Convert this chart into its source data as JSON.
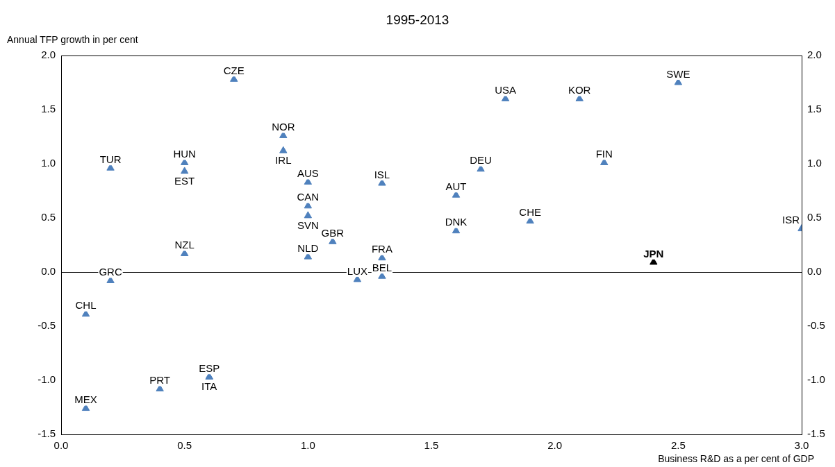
{
  "chart_data": {
    "type": "scatter",
    "title": "1995-2013",
    "ylabel": "Annual TFP growth in per cent",
    "xlabel": "Business R&D as a per cent of GDP",
    "xlim": [
      0,
      3
    ],
    "xticks": [
      {
        "value": 0,
        "label": "0.0"
      },
      {
        "value": 0.5,
        "label": "0.5"
      },
      {
        "value": 1,
        "label": "1.0"
      },
      {
        "value": 1.5,
        "label": "1.5"
      },
      {
        "value": 2,
        "label": "2.0"
      },
      {
        "value": 2.5,
        "label": "2.5"
      },
      {
        "value": 3,
        "label": "3.0"
      }
    ],
    "ylim": [
      -1.5,
      2
    ],
    "yticks": [
      {
        "value": -1.5,
        "label": "-1.5"
      },
      {
        "value": -1,
        "label": "-1.0"
      },
      {
        "value": -0.5,
        "label": "-0.5"
      },
      {
        "value": 0,
        "label": "0.0"
      },
      {
        "value": 0.5,
        "label": "0.5"
      },
      {
        "value": 1,
        "label": "1.0"
      },
      {
        "value": 1.5,
        "label": "1.5"
      },
      {
        "value": 2,
        "label": "2.0"
      }
    ],
    "y2lim": [
      -1.5,
      2
    ],
    "y2ticks": [
      {
        "value": -1.5,
        "label": "-1.5"
      },
      {
        "value": -1,
        "label": "-1.0"
      },
      {
        "value": -0.5,
        "label": "-0.5"
      },
      {
        "value": 0,
        "label": "0.0"
      },
      {
        "value": 0.5,
        "label": "0.5"
      },
      {
        "value": 1,
        "label": "1.0"
      },
      {
        "value": 1.5,
        "label": "1.5"
      },
      {
        "value": 2,
        "label": "2.0"
      }
    ],
    "marker": "triangle",
    "grid": false,
    "legend": false,
    "ref_lines": [
      {
        "axis": "y",
        "value": 0,
        "color": "#000000"
      }
    ],
    "series": [
      {
        "color": "#4f81bd",
        "x": [
          0.2,
          0.5,
          0.5,
          0.7,
          0.9,
          0.9,
          1.0,
          1.0,
          1.0,
          1.0,
          1.1,
          0.5,
          0.2,
          0.1,
          0.1,
          0.4,
          0.6,
          0.6,
          1.2,
          1.3,
          1.3,
          1.3,
          1.6,
          1.6,
          1.7,
          1.8,
          2.1,
          2.5,
          2.2,
          1.9,
          3.0
        ],
        "values": [
          0.96,
          1.01,
          0.93,
          1.78,
          1.26,
          1.12,
          0.83,
          0.61,
          0.52,
          0.14,
          0.28,
          0.17,
          -0.08,
          -0.39,
          -1.26,
          -1.08,
          -0.97,
          -0.97,
          -0.07,
          -0.04,
          0.13,
          0.82,
          0.71,
          0.38,
          0.95,
          1.6,
          1.6,
          1.75,
          1.01,
          0.47,
          0.4
        ]
      },
      {
        "color": "#000000",
        "x": [
          2.4
        ],
        "values": [
          0.09
        ]
      }
    ],
    "annotations": [
      {
        "text": "TUR",
        "x": 0.2,
        "y": 0.96
      },
      {
        "text": "HUN",
        "x": 0.5,
        "y": 1.01
      },
      {
        "text": "EST",
        "x": 0.5,
        "y": 0.93
      },
      {
        "text": "CZE",
        "x": 0.7,
        "y": 1.78
      },
      {
        "text": "NOR",
        "x": 0.9,
        "y": 1.26
      },
      {
        "text": "IRL",
        "x": 0.9,
        "y": 1.12
      },
      {
        "text": "AUS",
        "x": 1.0,
        "y": 0.83
      },
      {
        "text": "CAN",
        "x": 1.0,
        "y": 0.61
      },
      {
        "text": "SVN",
        "x": 1.0,
        "y": 0.52
      },
      {
        "text": "NLD",
        "x": 1.0,
        "y": 0.14
      },
      {
        "text": "GBR",
        "x": 1.1,
        "y": 0.28
      },
      {
        "text": "NZL",
        "x": 0.5,
        "y": 0.17
      },
      {
        "text": "GRC",
        "x": 0.2,
        "y": -0.08
      },
      {
        "text": "CHL",
        "x": 0.1,
        "y": -0.39
      },
      {
        "text": "MEX",
        "x": 0.1,
        "y": -1.26
      },
      {
        "text": "PRT",
        "x": 0.4,
        "y": -1.08
      },
      {
        "text": "ESP",
        "x": 0.6,
        "y": -0.97
      },
      {
        "text": "ITA",
        "x": 0.6,
        "y": -0.97
      },
      {
        "text": "LUX",
        "x": 1.2,
        "y": -0.07
      },
      {
        "text": "BEL",
        "x": 1.3,
        "y": -0.04
      },
      {
        "text": "FRA",
        "x": 1.3,
        "y": 0.13
      },
      {
        "text": "ISL",
        "x": 1.3,
        "y": 0.82
      },
      {
        "text": "AUT",
        "x": 1.6,
        "y": 0.71
      },
      {
        "text": "DNK",
        "x": 1.6,
        "y": 0.38
      },
      {
        "text": "DEU",
        "x": 1.7,
        "y": 0.95
      },
      {
        "text": "USA",
        "x": 1.8,
        "y": 1.6
      },
      {
        "text": "KOR",
        "x": 2.1,
        "y": 1.6
      },
      {
        "text": "SWE",
        "x": 2.5,
        "y": 1.75
      },
      {
        "text": "FIN",
        "x": 2.2,
        "y": 1.01
      },
      {
        "text": "CHE",
        "x": 1.9,
        "y": 0.47
      },
      {
        "text": "ISR",
        "x": 3.0,
        "y": 0.4
      },
      {
        "text": "JPN",
        "x": 2.4,
        "y": 0.09
      }
    ]
  }
}
